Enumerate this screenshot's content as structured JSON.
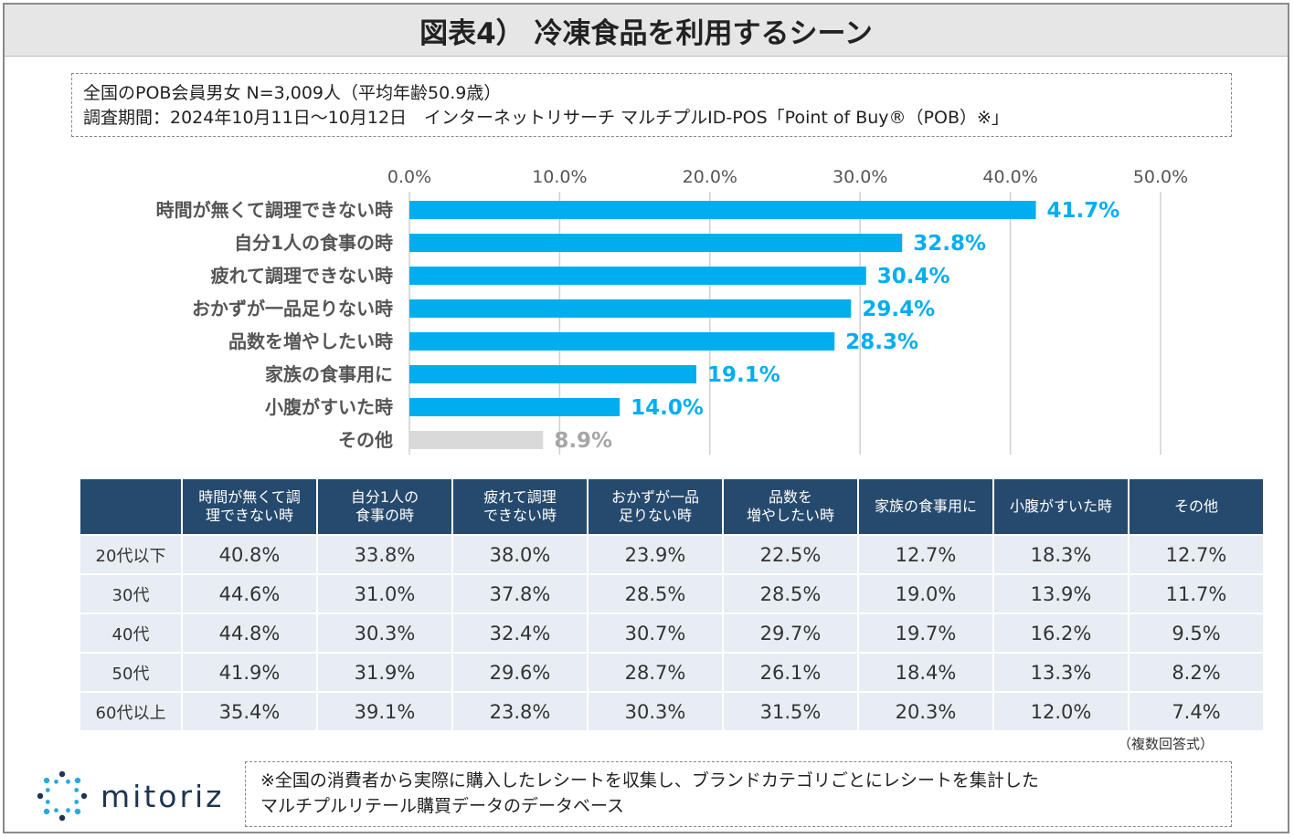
{
  "title": "図表4） 冷凍食品を利用するシーン",
  "survey": {
    "line1": "全国のPOB会員男女 N=3,009人（平均年齢50.9歳）",
    "line2": "調査期間：2024年10月11日～10月12日　インターネットリサーチ マルチプルID-POS「Point of Buy®（POB）※」"
  },
  "colors": {
    "bar": "#00aeef",
    "bar_other": "#d9d9d9",
    "label_other": "#a6a6a6",
    "header": "#264a6e",
    "cell": "#e8edf4"
  },
  "chart_data": {
    "type": "bar",
    "orientation": "horizontal",
    "categories": [
      "時間が無くて調理できない時",
      "自分1人の食事の時",
      "疲れて調理できない時",
      "おかずが一品足りない時",
      "品数を増やしたい時",
      "家族の食事用に",
      "小腹がすいた時",
      "その他"
    ],
    "values": [
      41.7,
      32.8,
      30.4,
      29.4,
      28.3,
      19.1,
      14.0,
      8.9
    ],
    "value_labels": [
      "41.7%",
      "32.8%",
      "30.4%",
      "29.4%",
      "28.3%",
      "19.1%",
      "14.0%",
      "8.9%"
    ],
    "xlim": [
      0,
      50
    ],
    "ticks": [
      0,
      10,
      20,
      30,
      40,
      50
    ],
    "tick_labels": [
      "0.0%",
      "10.0%",
      "20.0%",
      "30.0%",
      "40.0%",
      "50.0%"
    ],
    "grid": true,
    "title": "",
    "xlabel": "",
    "ylabel": ""
  },
  "table": {
    "headers": [
      [
        "時間が無くて調",
        "理できない時"
      ],
      [
        "自分1人の",
        "食事の時"
      ],
      [
        "疲れて調理",
        "できない時"
      ],
      [
        "おかずが一品",
        "足りない時"
      ],
      [
        "品数を",
        "増やしたい時"
      ],
      [
        "家族の食事用に"
      ],
      [
        "小腹がすいた時"
      ],
      [
        "その他"
      ]
    ],
    "rows": [
      {
        "label": "20代以下",
        "values": [
          "40.8%",
          "33.8%",
          "38.0%",
          "23.9%",
          "22.5%",
          "12.7%",
          "18.3%",
          "12.7%"
        ]
      },
      {
        "label": "30代",
        "values": [
          "44.6%",
          "31.0%",
          "37.8%",
          "28.5%",
          "28.5%",
          "19.0%",
          "13.9%",
          "11.7%"
        ]
      },
      {
        "label": "40代",
        "values": [
          "44.8%",
          "30.3%",
          "32.4%",
          "30.7%",
          "29.7%",
          "19.7%",
          "16.2%",
          "9.5%"
        ]
      },
      {
        "label": "50代",
        "values": [
          "41.9%",
          "31.9%",
          "29.6%",
          "28.7%",
          "26.1%",
          "18.4%",
          "13.3%",
          "8.2%"
        ]
      },
      {
        "label": "60代以上",
        "values": [
          "35.4%",
          "39.1%",
          "23.8%",
          "30.3%",
          "31.5%",
          "20.3%",
          "12.0%",
          "7.4%"
        ]
      }
    ]
  },
  "answer_note": "（複数回答式）",
  "logo": {
    "text": "mitoriz",
    "icon": "sunburst-logo-icon"
  },
  "footnote": {
    "line1": "※全国の消費者から実際に購入したレシートを収集し、ブランドカテゴリごとにレシートを集計した",
    "line2": "マルチプルリテール購買データのデータベース"
  }
}
